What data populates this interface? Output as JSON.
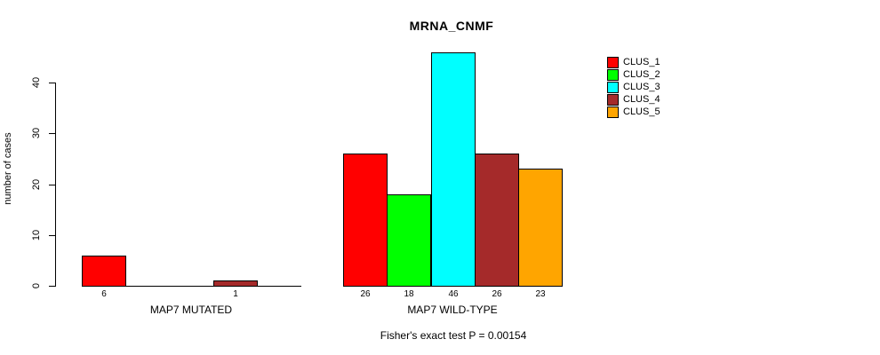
{
  "chart_data": {
    "type": "bar",
    "title": "MRNA_CNMF",
    "ylabel": "number of cases",
    "yticks": [
      0,
      10,
      20,
      30,
      40
    ],
    "ylim": [
      0,
      46
    ],
    "grid": false,
    "legend_position": "top-right",
    "series": [
      {
        "name": "CLUS_1",
        "color": "#ff0000"
      },
      {
        "name": "CLUS_2",
        "color": "#00ff00"
      },
      {
        "name": "CLUS_3",
        "color": "#00ffff"
      },
      {
        "name": "CLUS_4",
        "color": "#a52a2a"
      },
      {
        "name": "CLUS_5",
        "color": "#ffa500"
      }
    ],
    "groups": [
      {
        "label": "MAP7 MUTATED",
        "values": [
          6,
          0,
          0,
          1,
          0
        ]
      },
      {
        "label": "MAP7 WILD-TYPE",
        "values": [
          26,
          18,
          46,
          26,
          23
        ]
      }
    ],
    "annotation": "Fisher's exact test P = 0.00154",
    "axis_color": "#000000",
    "background_color": "#ffffff"
  }
}
